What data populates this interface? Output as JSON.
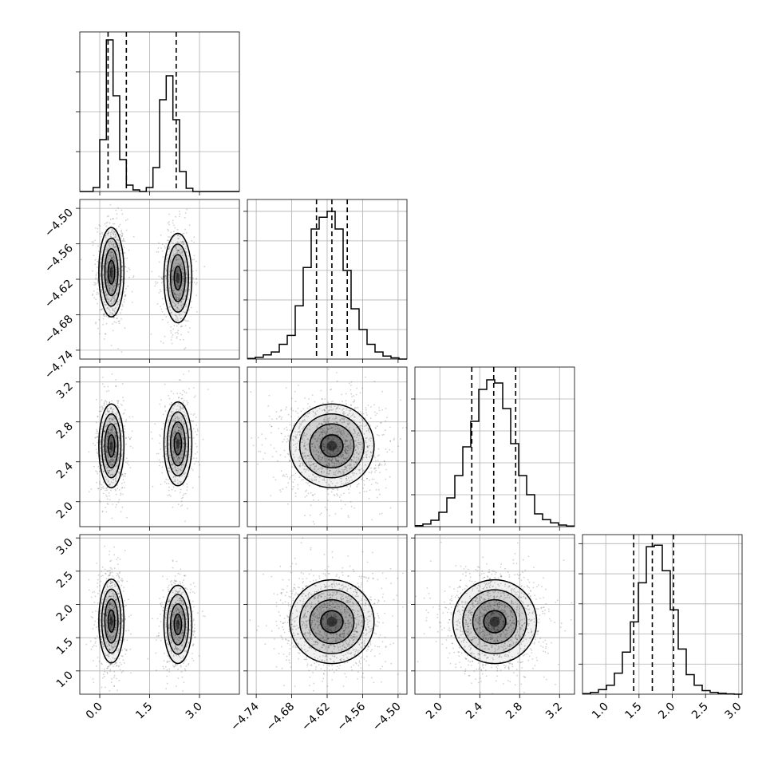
{
  "chart_data": {
    "type": "corner",
    "grid": true,
    "parameters": [
      {
        "range": [
          -0.6,
          4.2
        ],
        "ticks": [
          0.0,
          1.5,
          3.0
        ],
        "tick_labels": [
          "0.0",
          "1.5",
          "3.0"
        ],
        "quantiles": [
          0.25,
          0.8,
          2.3
        ],
        "histogram": {
          "bin_edges": [
            -0.6,
            -0.4,
            -0.2,
            0.0,
            0.2,
            0.4,
            0.6,
            0.8,
            1.0,
            1.2,
            1.4,
            1.6,
            1.8,
            2.0,
            2.2,
            2.4,
            2.6,
            2.8,
            3.0,
            3.2,
            3.4,
            3.6,
            3.8,
            4.0,
            4.2
          ],
          "counts": [
            0,
            0,
            5,
            65,
            190,
            120,
            40,
            8,
            2,
            0,
            5,
            30,
            115,
            145,
            90,
            25,
            4,
            0,
            0,
            0,
            0,
            0,
            0,
            0
          ],
          "ylim": [
            0,
            200
          ]
        }
      },
      {
        "range": [
          -4.755,
          -4.485
        ],
        "ticks": [
          -4.74,
          -4.68,
          -4.62,
          -4.56,
          -4.5
        ],
        "tick_labels": [
          "−4.74",
          "−4.68",
          "−4.62",
          "−4.56",
          "−4.50"
        ],
        "quantiles": [
          -4.638,
          -4.612,
          -4.586
        ],
        "histogram": {
          "bin_edges": [
            -4.755,
            -4.7415,
            -4.728,
            -4.7145,
            -4.701,
            -4.6875,
            -4.674,
            -4.6605,
            -4.647,
            -4.6335,
            -4.62,
            -4.6065,
            -4.593,
            -4.5795,
            -4.566,
            -4.5525,
            -4.539,
            -4.5255,
            -4.512,
            -4.4985,
            -4.485
          ],
          "counts": [
            1,
            3,
            7,
            12,
            25,
            40,
            90,
            155,
            220,
            240,
            250,
            220,
            150,
            85,
            50,
            25,
            12,
            5,
            2,
            0
          ],
          "ylim": [
            0,
            270
          ]
        }
      },
      {
        "range": [
          1.75,
          3.35
        ],
        "ticks": [
          2.0,
          2.4,
          2.8,
          3.2
        ],
        "tick_labels": [
          "2.0",
          "2.4",
          "2.8",
          "3.2"
        ],
        "quantiles": [
          2.32,
          2.54,
          2.76
        ],
        "histogram": {
          "bin_edges": [
            1.75,
            1.83,
            1.91,
            1.99,
            2.07,
            2.15,
            2.23,
            2.31,
            2.39,
            2.47,
            2.55,
            2.63,
            2.71,
            2.79,
            2.87,
            2.95,
            3.03,
            3.11,
            3.19,
            3.27,
            3.35
          ],
          "counts": [
            3,
            8,
            20,
            45,
            90,
            160,
            250,
            330,
            430,
            460,
            450,
            370,
            260,
            160,
            100,
            40,
            22,
            12,
            5,
            2
          ],
          "ylim": [
            0,
            500
          ]
        }
      },
      {
        "range": [
          0.65,
          3.05
        ],
        "ticks": [
          1.0,
          1.5,
          2.0,
          2.5,
          3.0
        ],
        "tick_labels": [
          "1.0",
          "1.5",
          "2.0",
          "2.5",
          "3.0"
        ],
        "quantiles": [
          1.42,
          1.7,
          2.02
        ],
        "histogram": {
          "bin_edges": [
            0.65,
            0.77,
            0.89,
            1.01,
            1.13,
            1.25,
            1.37,
            1.49,
            1.61,
            1.73,
            1.85,
            1.97,
            2.09,
            2.21,
            2.33,
            2.45,
            2.57,
            2.69,
            2.81,
            2.93,
            3.05
          ],
          "counts": [
            2,
            6,
            15,
            30,
            70,
            140,
            240,
            370,
            490,
            495,
            410,
            280,
            150,
            65,
            30,
            12,
            6,
            3,
            1,
            0
          ],
          "ylim": [
            0,
            530
          ]
        }
      }
    ],
    "joint": [
      {
        "x": 0,
        "y": 1,
        "modes": [
          {
            "cx": 0.35,
            "cy": -4.608,
            "sx": 0.18,
            "sy": 0.036,
            "w": 0.55
          },
          {
            "cx": 2.35,
            "cy": -4.618,
            "sx": 0.2,
            "sy": 0.036,
            "w": 0.45
          }
        ]
      },
      {
        "x": 0,
        "y": 2,
        "modes": [
          {
            "cx": 0.35,
            "cy": 2.56,
            "sx": 0.18,
            "sy": 0.2,
            "w": 0.55
          },
          {
            "cx": 2.35,
            "cy": 2.58,
            "sx": 0.2,
            "sy": 0.2,
            "w": 0.45
          }
        ]
      },
      {
        "x": 0,
        "y": 3,
        "modes": [
          {
            "cx": 0.35,
            "cy": 1.75,
            "sx": 0.18,
            "sy": 0.3,
            "w": 0.55
          },
          {
            "cx": 2.35,
            "cy": 1.7,
            "sx": 0.2,
            "sy": 0.28,
            "w": 0.45
          }
        ]
      },
      {
        "x": 1,
        "y": 2,
        "modes": [
          {
            "cx": -4.612,
            "cy": 2.56,
            "sx": 0.034,
            "sy": 0.2,
            "w": 1.0
          }
        ]
      },
      {
        "x": 1,
        "y": 3,
        "modes": [
          {
            "cx": -4.612,
            "cy": 1.74,
            "sx": 0.034,
            "sy": 0.3,
            "w": 1.0
          }
        ]
      },
      {
        "x": 2,
        "y": 3,
        "modes": [
          {
            "cx": 2.55,
            "cy": 1.74,
            "sx": 0.2,
            "sy": 0.3,
            "w": 1.0
          }
        ]
      }
    ]
  }
}
